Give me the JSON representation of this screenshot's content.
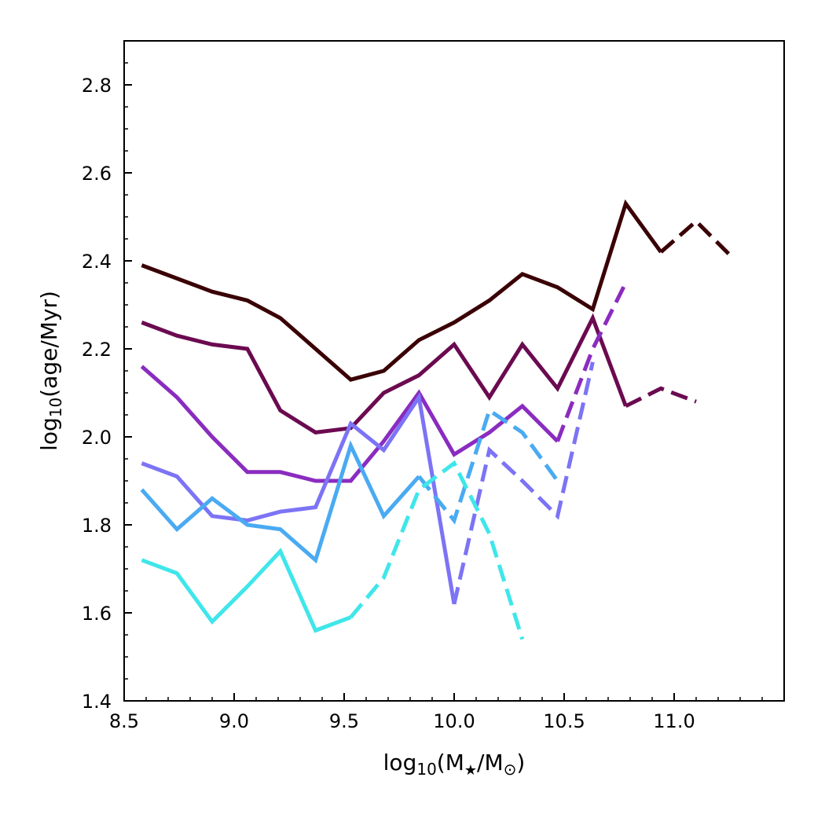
{
  "chart_data": {
    "type": "line",
    "xlabel": {
      "prefix": "log",
      "sub1": "10",
      "open": "(M",
      "sub2": "★",
      "mid": "/M",
      "sub3": "⊙",
      "close": ")"
    },
    "ylabel": {
      "prefix": "log",
      "sub1": "10",
      "rest": "(age/Myr)"
    },
    "xlim": [
      8.5,
      11.5
    ],
    "ylim": [
      1.4,
      2.9
    ],
    "xticks": [
      8.5,
      9.0,
      9.5,
      10.0,
      10.5,
      11.0
    ],
    "xtick_labels": [
      "8.5",
      "9.0",
      "9.5",
      "10.0",
      "10.5",
      "11.0"
    ],
    "yticks": [
      1.4,
      1.6,
      1.8,
      2.0,
      2.2,
      2.4,
      2.6,
      2.8
    ],
    "ytick_labels": [
      "1.4",
      "1.6",
      "1.8",
      "2.0",
      "2.2",
      "2.4",
      "2.6",
      "2.8"
    ],
    "grid": false,
    "legend": "none",
    "series": [
      {
        "color": "#3a0005",
        "solid": [
          [
            8.58,
            2.39
          ],
          [
            8.74,
            2.36
          ],
          [
            8.9,
            2.33
          ],
          [
            9.06,
            2.31
          ],
          [
            9.21,
            2.27
          ],
          [
            9.37,
            2.2
          ],
          [
            9.53,
            2.13
          ],
          [
            9.68,
            2.15
          ],
          [
            9.84,
            2.22
          ],
          [
            10.0,
            2.26
          ],
          [
            10.16,
            2.31
          ],
          [
            10.31,
            2.37
          ],
          [
            10.47,
            2.34
          ],
          [
            10.63,
            2.29
          ],
          [
            10.78,
            2.53
          ],
          [
            10.94,
            2.42
          ]
        ],
        "dashed": [
          [
            10.94,
            2.42
          ],
          [
            11.1,
            2.49
          ],
          [
            11.26,
            2.41
          ]
        ]
      },
      {
        "color": "#6b0a50",
        "solid": [
          [
            8.58,
            2.26
          ],
          [
            8.74,
            2.23
          ],
          [
            8.9,
            2.21
          ],
          [
            9.06,
            2.2
          ],
          [
            9.21,
            2.06
          ],
          [
            9.37,
            2.01
          ],
          [
            9.53,
            2.02
          ],
          [
            9.68,
            2.1
          ],
          [
            9.84,
            2.14
          ],
          [
            10.0,
            2.21
          ],
          [
            10.16,
            2.09
          ],
          [
            10.31,
            2.21
          ],
          [
            10.47,
            2.11
          ],
          [
            10.63,
            2.27
          ],
          [
            10.78,
            2.07
          ]
        ],
        "dashed": [
          [
            10.78,
            2.07
          ],
          [
            10.94,
            2.11
          ],
          [
            11.1,
            2.08
          ]
        ]
      },
      {
        "color": "#8a2cbf",
        "solid": [
          [
            8.58,
            2.16
          ],
          [
            8.74,
            2.09
          ],
          [
            8.9,
            2.0
          ],
          [
            9.06,
            1.92
          ],
          [
            9.21,
            1.92
          ],
          [
            9.37,
            1.9
          ],
          [
            9.53,
            1.9
          ],
          [
            9.68,
            1.99
          ],
          [
            9.84,
            2.1
          ],
          [
            10.0,
            1.96
          ],
          [
            10.16,
            2.01
          ],
          [
            10.31,
            2.07
          ],
          [
            10.47,
            1.99
          ]
        ],
        "dashed": [
          [
            10.47,
            1.99
          ],
          [
            10.63,
            2.2
          ],
          [
            10.78,
            2.35
          ]
        ]
      },
      {
        "color": "#7c73f5",
        "solid": [
          [
            8.58,
            1.94
          ],
          [
            8.74,
            1.91
          ],
          [
            8.9,
            1.82
          ],
          [
            9.06,
            1.81
          ],
          [
            9.21,
            1.83
          ],
          [
            9.37,
            1.84
          ],
          [
            9.53,
            2.03
          ],
          [
            9.68,
            1.97
          ],
          [
            9.84,
            2.09
          ],
          [
            10.0,
            1.62
          ]
        ],
        "dashed": [
          [
            10.0,
            1.62
          ],
          [
            10.16,
            1.97
          ],
          [
            10.31,
            1.9
          ],
          [
            10.47,
            1.82
          ],
          [
            10.63,
            2.17
          ]
        ]
      },
      {
        "color": "#4aaaf2",
        "solid": [
          [
            8.58,
            1.88
          ],
          [
            8.74,
            1.79
          ],
          [
            8.9,
            1.86
          ],
          [
            9.06,
            1.8
          ],
          [
            9.21,
            1.79
          ],
          [
            9.37,
            1.72
          ],
          [
            9.53,
            1.98
          ],
          [
            9.68,
            1.82
          ],
          [
            9.84,
            1.91
          ]
        ],
        "dashed": [
          [
            9.84,
            1.91
          ],
          [
            10.0,
            1.81
          ],
          [
            10.16,
            2.06
          ],
          [
            10.31,
            2.01
          ],
          [
            10.47,
            1.9
          ]
        ]
      },
      {
        "color": "#3fe6ea",
        "solid": [
          [
            8.58,
            1.72
          ],
          [
            8.74,
            1.69
          ],
          [
            8.9,
            1.58
          ],
          [
            9.06,
            1.66
          ],
          [
            9.21,
            1.74
          ],
          [
            9.37,
            1.56
          ],
          [
            9.53,
            1.59
          ]
        ],
        "dashed": [
          [
            9.53,
            1.59
          ],
          [
            9.68,
            1.68
          ],
          [
            9.84,
            1.88
          ],
          [
            10.0,
            1.94
          ],
          [
            10.16,
            1.78
          ],
          [
            10.31,
            1.54
          ]
        ]
      }
    ]
  }
}
